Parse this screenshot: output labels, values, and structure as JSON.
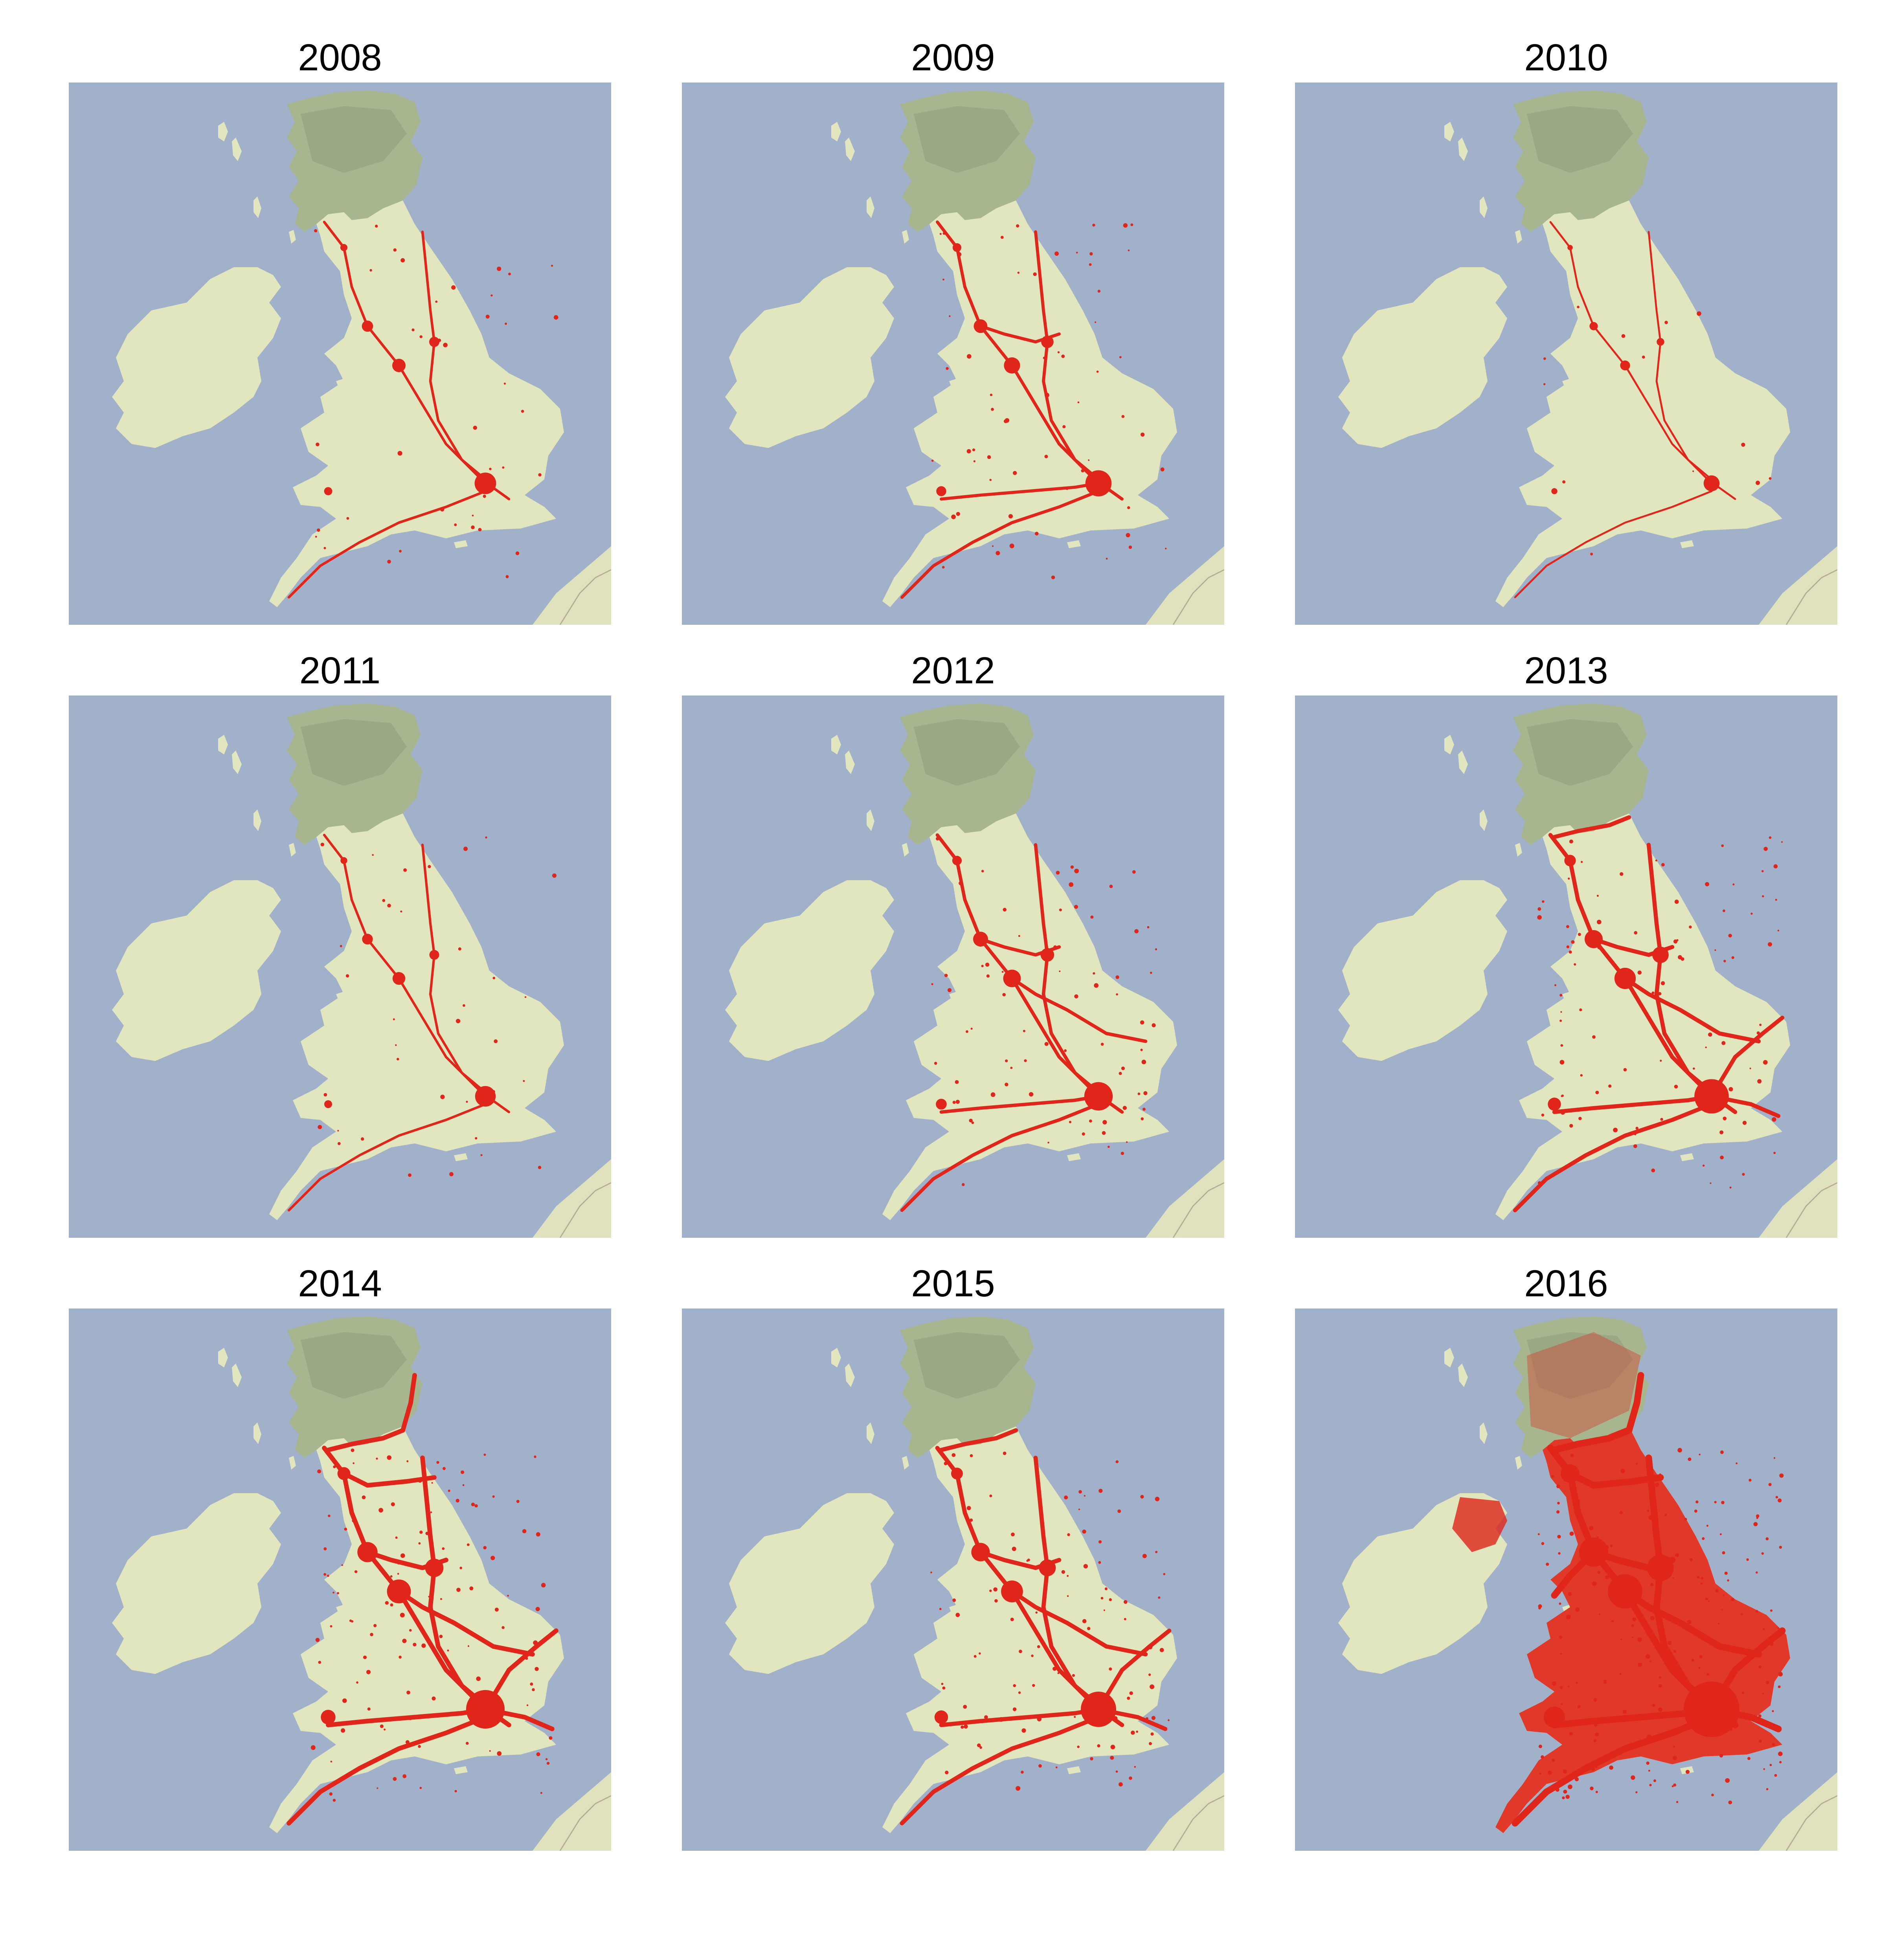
{
  "colors": {
    "sea": "#a1b1ca",
    "land": "#e2e6bf",
    "highland": "#a8b690",
    "highland_dark": "#8e9d7c",
    "continent": "#dfe2bc",
    "border_line": "#b4ab9a",
    "route": "#e0261a"
  },
  "panels": [
    {
      "year": "2008",
      "coverage": 0.18
    },
    {
      "year": "2009",
      "coverage": 0.28
    },
    {
      "year": "2010",
      "coverage": 0.06
    },
    {
      "year": "2011",
      "coverage": 0.16
    },
    {
      "year": "2012",
      "coverage": 0.33
    },
    {
      "year": "2013",
      "coverage": 0.46
    },
    {
      "year": "2014",
      "coverage": 0.55
    },
    {
      "year": "2015",
      "coverage": 0.48
    },
    {
      "year": "2016",
      "coverage": 0.92
    }
  ]
}
